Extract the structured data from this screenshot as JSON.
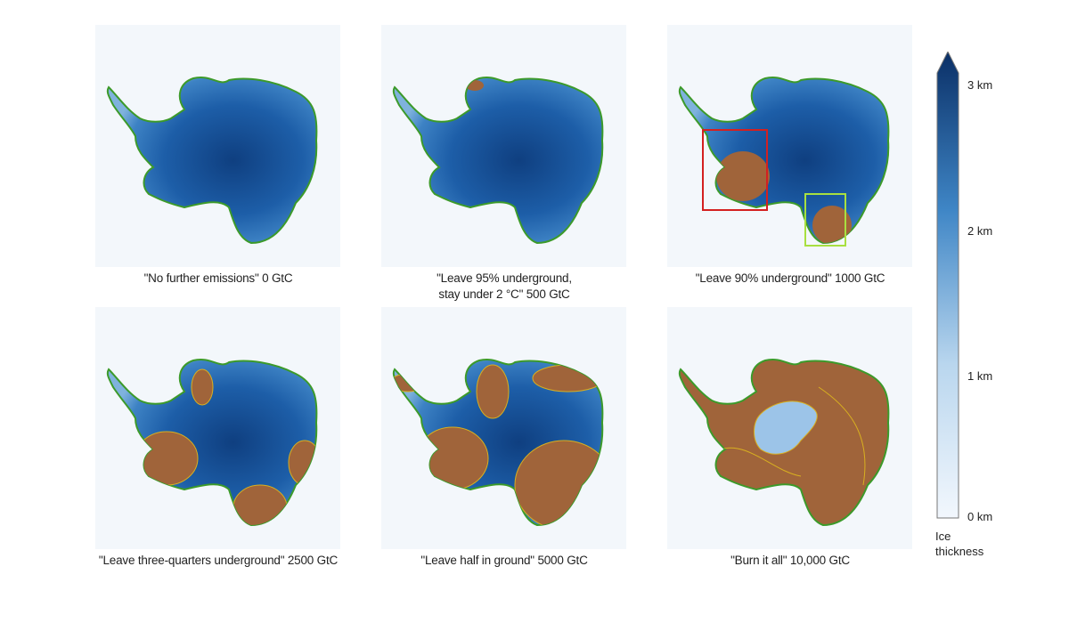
{
  "panels": [
    {
      "caption": "\"No further emissions\" 0 GtC"
    },
    {
      "caption": "\"Leave 95% underground,",
      "caption2": "stay under 2 °C\" 500 GtC"
    },
    {
      "caption": "\"Leave 90% underground\" 1000 GtC"
    },
    {
      "caption": "\"Leave three-quarters underground\" 2500 GtC"
    },
    {
      "caption": "\"Leave half in ground\" 5000 GtC"
    },
    {
      "caption": "\"Burn it all\" 10,000 GtC"
    }
  ],
  "colorbar": {
    "ticks": [
      "3 km",
      "2 km",
      "1 km",
      "0 km"
    ],
    "label_line1": "Ice",
    "label_line2": "thickness"
  },
  "colors": {
    "ice_dark": "#0d3d7a",
    "ice_light": "#eaf2fb",
    "bedrock": "#a0643a",
    "coast": "#3c9a2a",
    "grounding_line": "#d8b020",
    "box_red": "#d42020",
    "box_green": "#a8e040"
  }
}
